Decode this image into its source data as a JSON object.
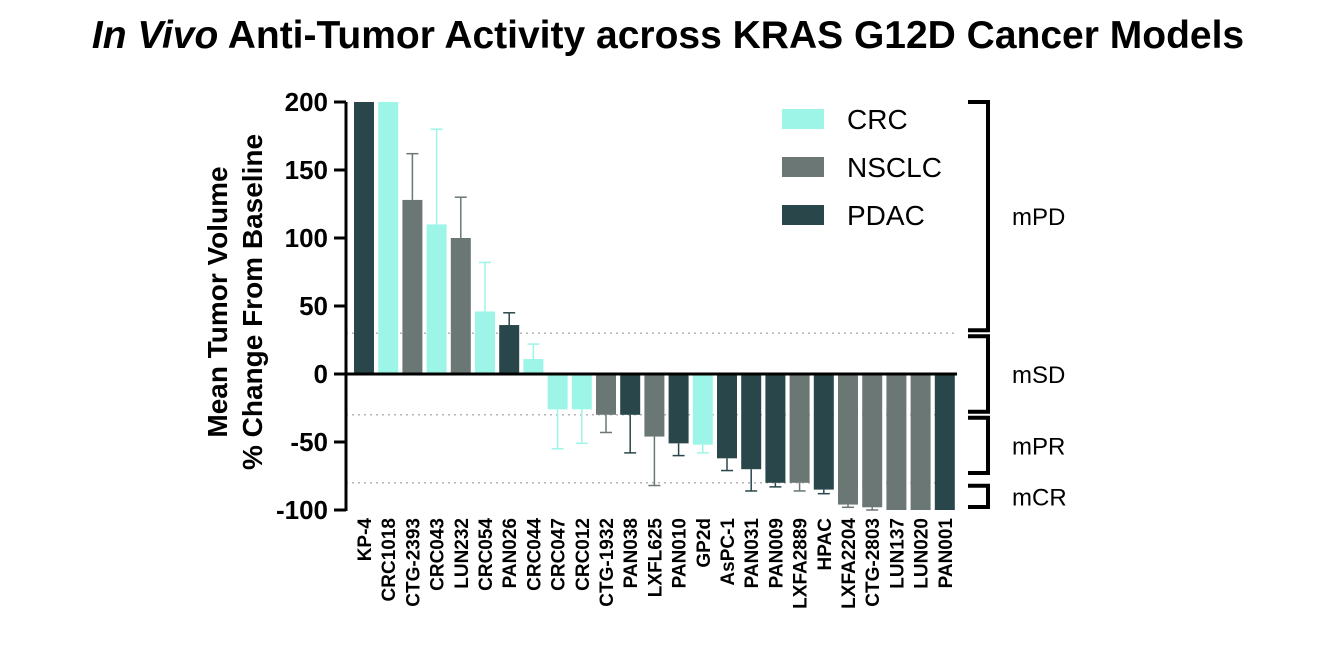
{
  "chart_data": {
    "type": "bar",
    "title_italic": "In Vivo",
    "title_rest": "Anti-Tumor Activity across KRAS G12D Cancer Models",
    "ylabel_line1": "Mean Tumor Volume",
    "ylabel_line2": "% Change From Baseline",
    "xlabel": "",
    "ylim": [
      -100,
      200
    ],
    "yticks": [
      "200",
      "150",
      "100",
      "50",
      "0",
      "-50",
      "-100"
    ],
    "ytick_values": [
      200,
      150,
      100,
      50,
      0,
      -50,
      -100
    ],
    "reference_lines": [
      30,
      -30,
      -80
    ],
    "legend_position": "top-right",
    "legend": [
      {
        "name": "CRC",
        "color": "#9df5e8"
      },
      {
        "name": "NSCLC",
        "color": "#6b7775"
      },
      {
        "name": "PDAC",
        "color": "#29474a"
      }
    ],
    "response_brackets": [
      {
        "label": "mPD",
        "from": 200,
        "to": 30
      },
      {
        "label": "mSD",
        "from": 30,
        "to": -30
      },
      {
        "label": "mPR",
        "from": -30,
        "to": -75
      },
      {
        "label": "mCR",
        "from": -80,
        "to": -100
      }
    ],
    "bars": [
      {
        "category": "KP-4",
        "type": "PDAC",
        "value": 200
      },
      {
        "category": "CRC1018",
        "type": "CRC",
        "value": 200
      },
      {
        "category": "CTG-2393",
        "type": "NSCLC",
        "value": 128,
        "error": 34
      },
      {
        "category": "CRC043",
        "type": "CRC",
        "value": 110,
        "error": 70
      },
      {
        "category": "LUN232",
        "type": "NSCLC",
        "value": 100,
        "error": 30
      },
      {
        "category": "CRC054",
        "type": "CRC",
        "value": 46,
        "error": 36
      },
      {
        "category": "PAN026",
        "type": "PDAC",
        "value": 36,
        "error": 9
      },
      {
        "category": "CRC044",
        "type": "CRC",
        "value": 11,
        "error": 11
      },
      {
        "category": "CRC047",
        "type": "CRC",
        "value": -26,
        "error": 29
      },
      {
        "category": "CRC012",
        "type": "CRC",
        "value": -26,
        "error": 25
      },
      {
        "category": "CTG-1932",
        "type": "NSCLC",
        "value": -30,
        "error": 13
      },
      {
        "category": "PAN038",
        "type": "PDAC",
        "value": -30,
        "error": 28
      },
      {
        "category": "LXFL625",
        "type": "NSCLC",
        "value": -46,
        "error": 36
      },
      {
        "category": "PAN010",
        "type": "PDAC",
        "value": -51,
        "error": 9
      },
      {
        "category": "GP2d",
        "type": "CRC",
        "value": -52,
        "error": 6
      },
      {
        "category": "AsPC-1",
        "type": "PDAC",
        "value": -62,
        "error": 9
      },
      {
        "category": "PAN031",
        "type": "PDAC",
        "value": -70,
        "error": 16
      },
      {
        "category": "PAN009",
        "type": "PDAC",
        "value": -80,
        "error": 3
      },
      {
        "category": "LXFA2889",
        "type": "NSCLC",
        "value": -80,
        "error": 6
      },
      {
        "category": "HPAC",
        "type": "PDAC",
        "value": -85,
        "error": 3
      },
      {
        "category": "LXFA2204",
        "type": "NSCLC",
        "value": -96,
        "error": 2
      },
      {
        "category": "CTG-2803",
        "type": "NSCLC",
        "value": -98,
        "error": 2
      },
      {
        "category": "LUN137",
        "type": "NSCLC",
        "value": -100
      },
      {
        "category": "LUN020",
        "type": "NSCLC",
        "value": -100
      },
      {
        "category": "PAN001",
        "type": "PDAC",
        "value": -100
      }
    ]
  }
}
